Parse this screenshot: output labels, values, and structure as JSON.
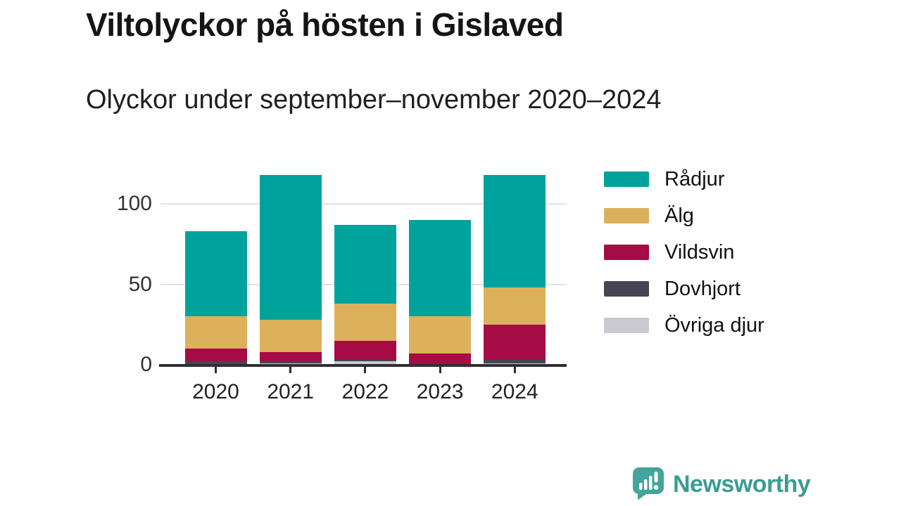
{
  "header": {
    "title": "Viltolyckor på hösten i Gislaved",
    "subtitle": "Olyckor under september–november 2020–2024"
  },
  "chart_data": {
    "type": "bar",
    "stacked": true,
    "title": "Viltolyckor på hösten i Gislaved",
    "subtitle": "Olyckor under september–november 2020–2024",
    "categories": [
      "2020",
      "2021",
      "2022",
      "2023",
      "2024"
    ],
    "series": [
      {
        "name": "Rådjur",
        "color": "#00a39b",
        "values": [
          53,
          90,
          49,
          60,
          70
        ]
      },
      {
        "name": "Älg",
        "color": "#ddb05c",
        "values": [
          20,
          20,
          23,
          23,
          23
        ]
      },
      {
        "name": "Vildsvin",
        "color": "#a50b45",
        "values": [
          8,
          6,
          12,
          7,
          22
        ]
      },
      {
        "name": "Dovhjort",
        "color": "#464553",
        "values": [
          2,
          1,
          1,
          0,
          2
        ]
      },
      {
        "name": "Övriga djur",
        "color": "#c9c9cf",
        "values": [
          0,
          1,
          2,
          0,
          1
        ]
      }
    ],
    "xlabel": "",
    "ylabel": "",
    "yticks": [
      0,
      50,
      100
    ],
    "ylim": [
      0,
      123
    ],
    "grid": true,
    "legend_position": "right",
    "stack_order": "first series on top"
  },
  "footer": {
    "brand": "Newsworthy"
  },
  "colors": {
    "background": "#ffffff",
    "axis": "#2f2f33",
    "gridline": "#e3e3e5",
    "title_text": "#151515",
    "tick_text": "#333333",
    "brand_teal": "#3a9c94",
    "brand_icon_teal": "#43a59b"
  }
}
